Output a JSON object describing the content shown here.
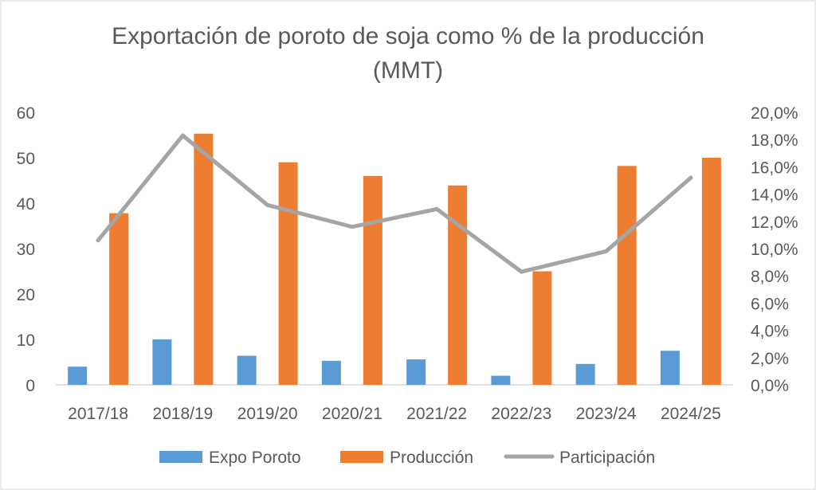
{
  "chart_data": {
    "type": "bar",
    "title_line1": "Exportación de poroto de soja como % de la producción",
    "title_line2": "(MMT)",
    "categories": [
      "2017/18",
      "2018/19",
      "2019/20",
      "2020/21",
      "2021/22",
      "2022/23",
      "2023/24",
      "2024/25"
    ],
    "series": [
      {
        "name": "Expo Poroto",
        "type": "bar",
        "axis": "left",
        "color": "#5B9BD5",
        "values": [
          4.0,
          10.0,
          6.4,
          5.3,
          5.6,
          2.0,
          4.6,
          7.5
        ]
      },
      {
        "name": "Producción",
        "type": "bar",
        "axis": "left",
        "color": "#ED7D31",
        "values": [
          37.8,
          55.3,
          49.0,
          46.0,
          43.9,
          25.0,
          48.2,
          50.0
        ]
      },
      {
        "name": "Participación",
        "type": "line",
        "axis": "right",
        "color": "#A5A5A5",
        "values": [
          10.6,
          18.3,
          13.2,
          11.6,
          12.9,
          8.3,
          9.8,
          15.2
        ]
      }
    ],
    "y_left": {
      "min": 0,
      "max": 60,
      "ticks": [
        "0",
        "10",
        "20",
        "30",
        "40",
        "50",
        "60"
      ]
    },
    "y_right": {
      "min": 0,
      "max": 20,
      "ticks": [
        "0,0%",
        "2,0%",
        "4,0%",
        "6,0%",
        "8,0%",
        "10,0%",
        "12,0%",
        "14,0%",
        "16,0%",
        "18,0%",
        "20,0%"
      ]
    },
    "grid": false,
    "legend_position": "bottom"
  }
}
